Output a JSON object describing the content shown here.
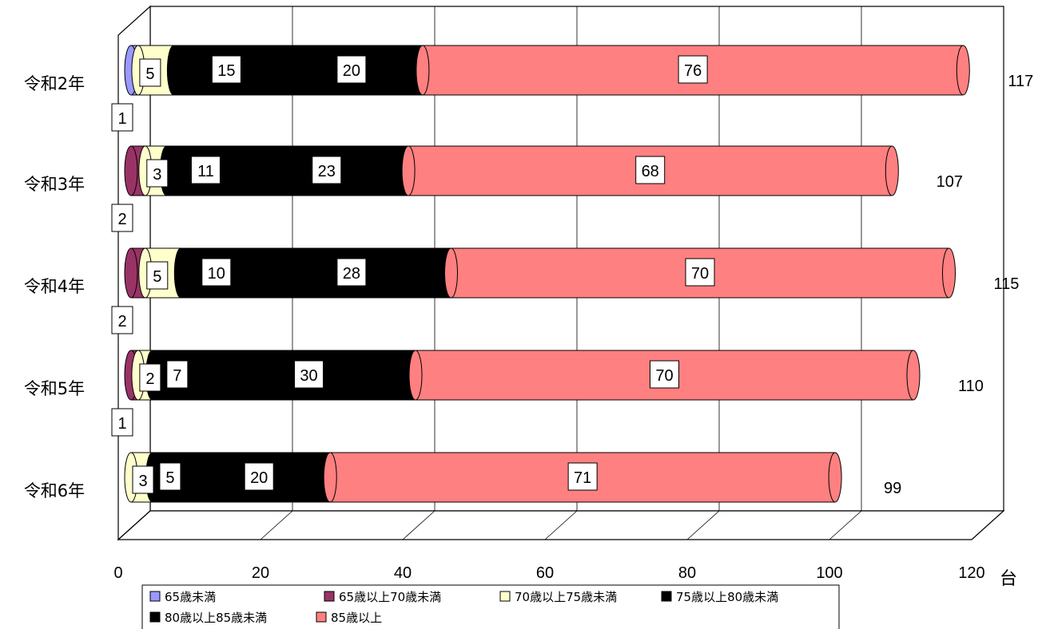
{
  "chart_data": {
    "type": "bar",
    "orientation": "horizontal",
    "stacked": true,
    "style": "3d-cylinder",
    "categories": [
      "令和2年",
      "令和3年",
      "令和4年",
      "令和5年",
      "令和6年"
    ],
    "series": [
      {
        "name": "65歳未満",
        "color": "#9999ff",
        "values": [
          1,
          0,
          0,
          0,
          0
        ]
      },
      {
        "name": "65歳以上70歳未満",
        "color": "#993366",
        "values": [
          0,
          2,
          2,
          1,
          0
        ]
      },
      {
        "name": "70歳以上75歳未満",
        "color": "#ffffcc",
        "values": [
          5,
          3,
          5,
          2,
          3
        ]
      },
      {
        "name": "75歳以上80歳未満",
        "color": "#000000",
        "values": [
          15,
          11,
          10,
          7,
          5
        ]
      },
      {
        "name": "80歳以上85歳未満",
        "color": "#000000",
        "values": [
          20,
          23,
          28,
          30,
          20
        ]
      },
      {
        "name": "85歳以上",
        "color": "#ff8080",
        "values": [
          76,
          68,
          70,
          70,
          71
        ]
      }
    ],
    "totals": [
      117,
      107,
      115,
      110,
      99
    ],
    "xlim": [
      0,
      120
    ],
    "x_ticks": [
      0,
      20,
      40,
      60,
      80,
      100,
      120
    ],
    "x_unit": "台",
    "grid": true,
    "legend_position": "bottom"
  }
}
